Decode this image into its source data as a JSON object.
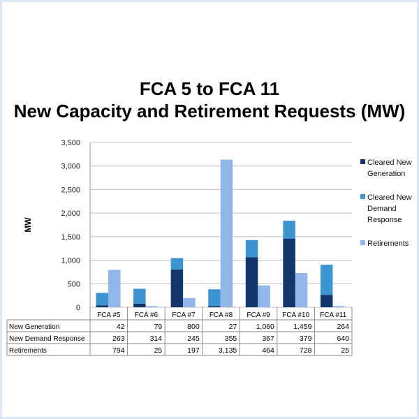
{
  "chart_data": {
    "type": "bar",
    "stacked": true,
    "title": [
      "FCA 5 to FCA 11",
      "New Capacity and Retirement Requests (MW)"
    ],
    "xlabel": "",
    "ylabel": "MW",
    "ylim": [
      0,
      3500
    ],
    "yticks": [
      0,
      500,
      1000,
      1500,
      2000,
      2500,
      3000,
      3500
    ],
    "ytick_labels": [
      "0",
      "500",
      "1,000",
      "1,500",
      "2,000",
      "2,500",
      "3,000",
      "3,500"
    ],
    "grid": true,
    "legend_position": "right",
    "categories": [
      "FCA #5",
      "FCA #6",
      "FCA #7",
      "FCA #8",
      "FCA #9",
      "FCA #10",
      "FCA #11"
    ],
    "series": [
      {
        "name": "Cleared New Generation",
        "legend_lines": [
          "Cleared New",
          "Generation"
        ],
        "table_label": "New Generation",
        "stack": "new",
        "color": "#12356b",
        "values": [
          42,
          79,
          800,
          27,
          1060,
          1459,
          264
        ],
        "labels": [
          "42",
          "79",
          "800",
          "27",
          "1,060",
          "1,459",
          "264"
        ]
      },
      {
        "name": "Cleared New Demand Response",
        "legend_lines": [
          "Cleared New",
          "Demand",
          "Response"
        ],
        "table_label": "New Demand Response",
        "stack": "new",
        "color": "#3c95d0",
        "values": [
          263,
          314,
          245,
          355,
          367,
          379,
          640
        ],
        "labels": [
          "263",
          "314",
          "245",
          "355",
          "367",
          "379",
          "640"
        ]
      },
      {
        "name": "Retirements",
        "legend_lines": [
          "Retirements"
        ],
        "table_label": "Retirements",
        "stack": "ret",
        "color": "#92b6ea",
        "values": [
          794,
          25,
          197,
          3135,
          464,
          728,
          25
        ],
        "labels": [
          "794",
          "25",
          "197",
          "3,135",
          "464",
          "728",
          "25"
        ]
      }
    ]
  }
}
